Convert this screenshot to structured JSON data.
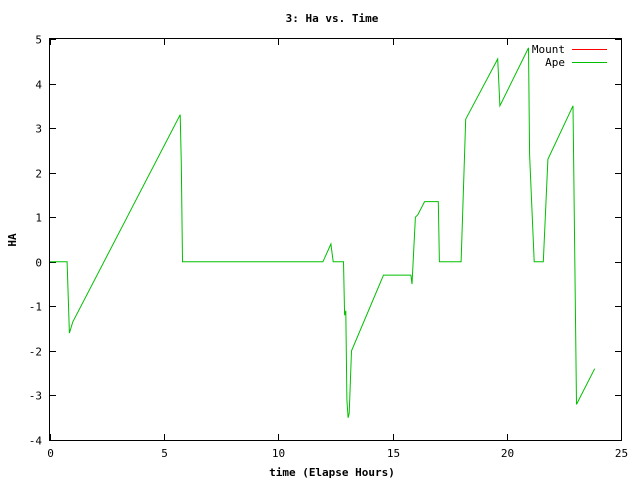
{
  "chart_data": {
    "type": "line",
    "title": "3: Ha vs. Time",
    "xlabel": "time (Elapse Hours)",
    "ylabel": "HA",
    "xlim": [
      0,
      25
    ],
    "ylim": [
      -4,
      5
    ],
    "xticks": [
      0,
      5,
      10,
      15,
      20,
      25
    ],
    "yticks": [
      -4,
      -3,
      -2,
      -1,
      0,
      1,
      2,
      3,
      4,
      5
    ],
    "grid": false,
    "legend_position": "top-right",
    "series": [
      {
        "name": "Mount",
        "color": "#ff0000",
        "points": []
      },
      {
        "name": "Ape",
        "color": "#00c000",
        "points": [
          [
            0.0,
            0.0
          ],
          [
            0.75,
            0.0
          ],
          [
            0.85,
            -1.6
          ],
          [
            1.0,
            -1.35
          ],
          [
            5.7,
            3.3
          ],
          [
            5.75,
            2.2
          ],
          [
            5.8,
            0.0
          ],
          [
            11.95,
            0.0
          ],
          [
            12.3,
            0.4
          ],
          [
            12.4,
            0.0
          ],
          [
            12.85,
            0.0
          ],
          [
            12.9,
            -1.2
          ],
          [
            12.95,
            -1.1
          ],
          [
            13.0,
            -3.1
          ],
          [
            13.05,
            -3.5
          ],
          [
            13.1,
            -3.4
          ],
          [
            13.2,
            -2.0
          ],
          [
            14.6,
            -0.3
          ],
          [
            15.8,
            -0.3
          ],
          [
            15.85,
            -0.5
          ],
          [
            16.0,
            1.0
          ],
          [
            16.1,
            1.05
          ],
          [
            16.4,
            1.35
          ],
          [
            17.0,
            1.35
          ],
          [
            17.05,
            0.0
          ],
          [
            18.0,
            0.0
          ],
          [
            18.2,
            3.2
          ],
          [
            19.6,
            4.55
          ],
          [
            19.7,
            3.5
          ],
          [
            20.95,
            4.8
          ],
          [
            21.0,
            2.4
          ],
          [
            21.1,
            1.2
          ],
          [
            21.2,
            0.0
          ],
          [
            21.6,
            0.0
          ],
          [
            21.8,
            2.3
          ],
          [
            22.9,
            3.5
          ],
          [
            23.05,
            -3.2
          ],
          [
            23.85,
            -2.4
          ]
        ]
      }
    ]
  }
}
